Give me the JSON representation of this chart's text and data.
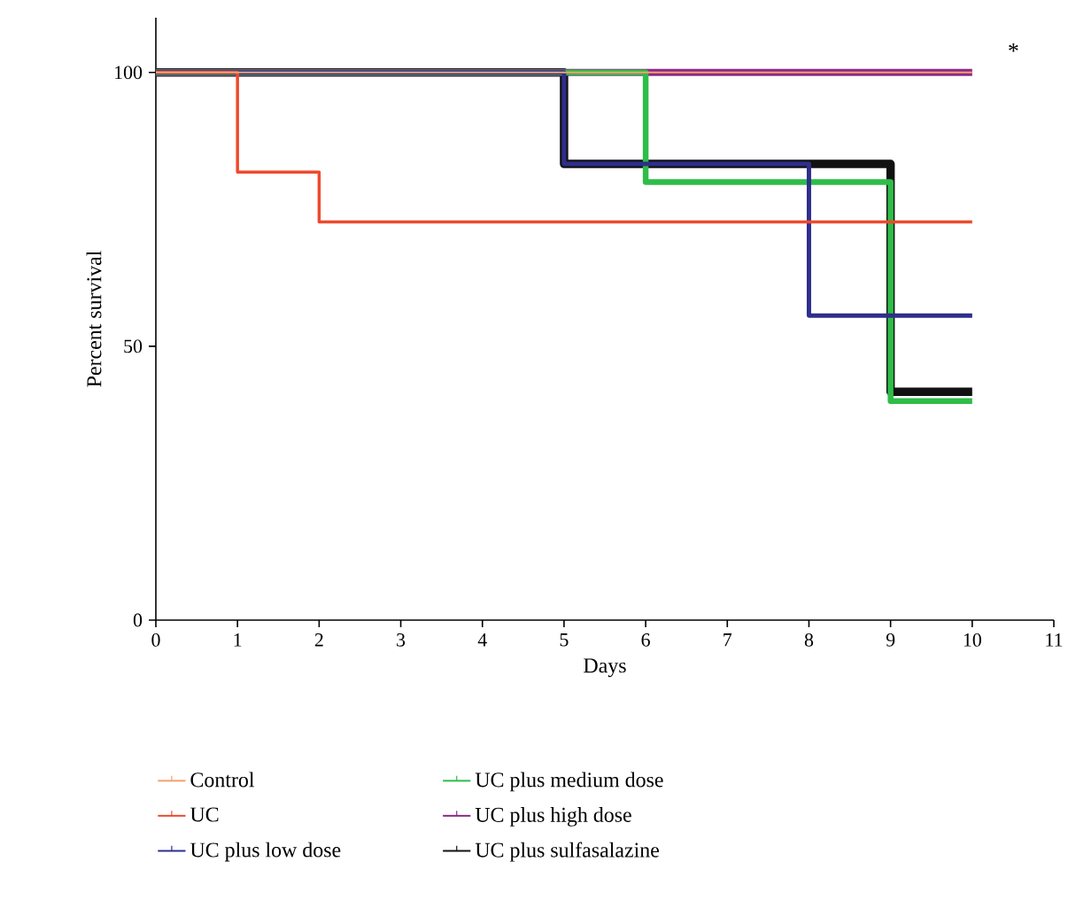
{
  "chart_data": {
    "type": "step",
    "xlabel": "Days",
    "ylabel": "Percent survival",
    "x": [
      0,
      1,
      2,
      3,
      4,
      5,
      6,
      7,
      8,
      9,
      10
    ],
    "series": [
      {
        "name": "Control",
        "color": "#f4a06c",
        "values": [
          100,
          100,
          100,
          100,
          100,
          100,
          100,
          100,
          100,
          100,
          100
        ]
      },
      {
        "name": "UC",
        "color": "#ee4a2e",
        "values": [
          100,
          81.8,
          72.7,
          72.7,
          72.7,
          72.7,
          72.7,
          72.7,
          72.7,
          72.7,
          72.7
        ]
      },
      {
        "name": "UC plus low dose",
        "color": "#2e2e8c",
        "values": [
          100,
          100,
          100,
          100,
          100,
          83.3,
          83.3,
          83.3,
          55.6,
          55.6,
          55.6
        ]
      },
      {
        "name": "UC plus medium dose",
        "color": "#2ebd48",
        "values": [
          100,
          100,
          100,
          100,
          100,
          100,
          80,
          80,
          80,
          40,
          40
        ]
      },
      {
        "name": "UC plus high dose",
        "color": "#8b2a8a",
        "values": [
          100,
          100,
          100,
          100,
          100,
          100,
          100,
          100,
          100,
          100,
          100
        ]
      },
      {
        "name": "UC plus sulfasalazine",
        "color": "#111111",
        "values": [
          100,
          100,
          100,
          100,
          100,
          83.3,
          83.3,
          83.3,
          83.3,
          41.7,
          41.7
        ]
      }
    ],
    "xlim": [
      0,
      11
    ],
    "xticks": [
      0,
      1,
      2,
      3,
      4,
      5,
      6,
      7,
      8,
      9,
      10,
      11
    ],
    "ylim": [
      0,
      110
    ],
    "yticks": [
      0,
      50,
      100
    ],
    "grid": false,
    "legend": "bottom",
    "annotations": [
      "*"
    ]
  }
}
